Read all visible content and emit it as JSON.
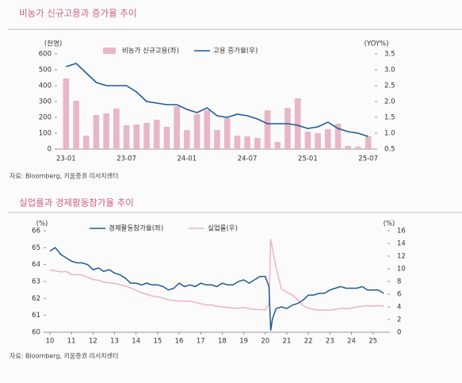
{
  "chart_data": [
    {
      "type": "bar",
      "title": "비농가 신규고용과 증가율 추이",
      "ylabel": "(천명)",
      "y2label": "(YOY%)",
      "source": "자료: Bloomberg, 키움증권 리서치센터",
      "categories": [
        "23-01",
        null,
        null,
        null,
        null,
        null,
        "23-07",
        null,
        null,
        null,
        null,
        null,
        "24-01",
        null,
        null,
        null,
        null,
        null,
        "24-07",
        null,
        null,
        null,
        null,
        null,
        "25-01",
        null,
        null,
        null,
        null,
        null,
        "25-07"
      ],
      "series": [
        {
          "name": "비농가 신규고용(좌)",
          "type": "bar",
          "color": "#e8b6c6",
          "values": [
            445,
            305,
            85,
            215,
            225,
            255,
            150,
            155,
            165,
            185,
            140,
            270,
            120,
            220,
            245,
            120,
            195,
            85,
            80,
            70,
            245,
            45,
            260,
            320,
            110,
            100,
            125,
            160,
            20,
            15,
            80
          ]
        },
        {
          "name": "고용 증가율(우)",
          "type": "line",
          "axis": "y2",
          "color": "#1f5a96",
          "values": [
            3.1,
            3.2,
            2.9,
            2.6,
            2.5,
            2.5,
            2.5,
            2.3,
            2.0,
            1.95,
            1.9,
            1.9,
            1.75,
            1.65,
            1.8,
            1.55,
            1.5,
            1.6,
            1.55,
            1.45,
            1.3,
            1.3,
            1.3,
            1.25,
            1.15,
            1.2,
            1.35,
            1.15,
            1.05,
            1.0,
            0.9
          ]
        }
      ],
      "ylim": [
        0,
        600
      ],
      "yticks": [
        0,
        100,
        200,
        300,
        400,
        500,
        600
      ],
      "y2lim": [
        0.5,
        3.5
      ],
      "y2ticks": [
        0.5,
        {
          "value": 1,
          "label": "1.0"
        },
        1.5,
        {
          "value": 2,
          "label": "2.0"
        },
        2.5,
        {
          "value": 3,
          "label": "3.0"
        },
        3.5
      ]
    },
    {
      "type": "line",
      "title": "실업률과 경제활동참가율 추이",
      "ylabel": "(%)",
      "y2label": "(%)",
      "source": "자료: Bloomberg, 키움증권 리서치센터",
      "x": [
        10,
        10.25,
        10.5,
        10.75,
        11,
        11.25,
        11.5,
        11.75,
        12,
        12.25,
        12.5,
        12.75,
        13,
        13.25,
        13.5,
        13.75,
        14,
        14.25,
        14.5,
        14.75,
        15,
        15.25,
        15.5,
        15.75,
        16,
        16.25,
        16.5,
        16.75,
        17,
        17.25,
        17.5,
        17.75,
        18,
        18.25,
        18.5,
        18.75,
        19,
        19.25,
        19.5,
        19.75,
        20,
        20.17,
        20.25,
        20.33,
        20.5,
        20.75,
        21,
        21.25,
        21.5,
        21.75,
        22,
        22.25,
        22.5,
        22.75,
        23,
        23.25,
        23.5,
        23.75,
        24,
        24.25,
        24.5,
        24.75,
        25,
        25.25,
        25.5
      ],
      "series": [
        {
          "name": "경제활동참가율(좌)",
          "color": "#1f5a96",
          "values": [
            64.8,
            65.0,
            64.6,
            64.4,
            64.2,
            64.1,
            64.1,
            64.0,
            63.7,
            63.8,
            63.6,
            63.7,
            63.5,
            63.4,
            63.2,
            62.9,
            62.9,
            62.8,
            62.9,
            62.8,
            62.8,
            62.7,
            62.5,
            62.6,
            62.9,
            62.7,
            62.8,
            62.7,
            62.9,
            62.8,
            62.8,
            62.7,
            62.9,
            62.8,
            62.8,
            63.0,
            63.1,
            62.9,
            63.1,
            63.3,
            63.3,
            62.7,
            60.1,
            60.8,
            61.4,
            61.5,
            61.4,
            61.6,
            61.7,
            61.9,
            62.2,
            62.2,
            62.3,
            62.3,
            62.5,
            62.6,
            62.7,
            62.6,
            62.6,
            62.6,
            62.7,
            62.5,
            62.5,
            62.5,
            62.3
          ]
        },
        {
          "name": "실업률(우)",
          "axis": "y2",
          "color": "#eab4c6",
          "values": [
            9.8,
            9.7,
            9.5,
            9.6,
            9.1,
            9.1,
            9.0,
            8.7,
            8.3,
            8.2,
            7.9,
            7.8,
            7.7,
            7.5,
            7.3,
            7.0,
            6.6,
            6.2,
            6.0,
            5.7,
            5.6,
            5.4,
            5.1,
            5.0,
            4.9,
            4.9,
            4.9,
            4.7,
            4.5,
            4.3,
            4.3,
            4.1,
            4.0,
            3.9,
            3.8,
            3.8,
            3.9,
            3.7,
            3.6,
            3.6,
            3.5,
            4.4,
            14.7,
            13.2,
            10.2,
            6.8,
            6.3,
            5.9,
            5.1,
            4.2,
            3.8,
            3.6,
            3.5,
            3.5,
            3.5,
            3.6,
            3.8,
            3.7,
            3.8,
            4.0,
            4.1,
            4.2,
            4.1,
            4.2,
            4.1
          ]
        }
      ],
      "xlim": [
        10,
        25.6
      ],
      "xticks": [
        10,
        11,
        12,
        13,
        14,
        15,
        16,
        17,
        18,
        19,
        20,
        21,
        22,
        23,
        24,
        25
      ],
      "ylim": [
        60,
        66
      ],
      "yticks": [
        60,
        61,
        62,
        63,
        64,
        65,
        66
      ],
      "y2lim": [
        0,
        16
      ],
      "y2ticks": [
        0,
        2,
        4,
        6,
        8,
        10,
        12,
        14,
        16
      ]
    }
  ]
}
